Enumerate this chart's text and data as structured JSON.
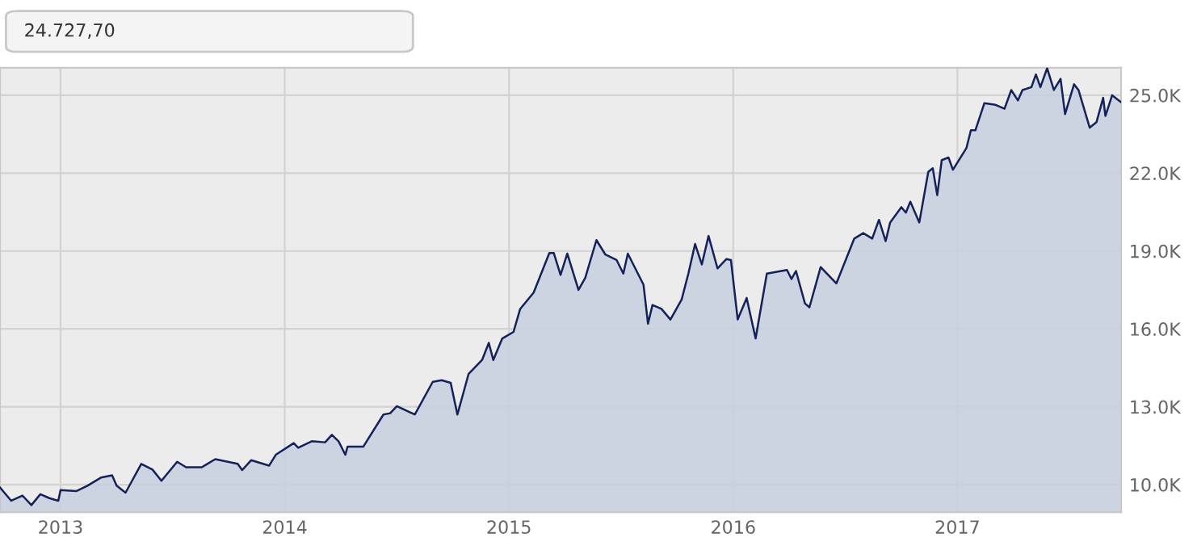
{
  "chart_data": {
    "type": "area",
    "annotations": [
      "24.727,70"
    ],
    "xlim": [
      2012.73,
      2017.73
    ],
    "xticks": [
      2013,
      2014,
      2015,
      2016,
      2017
    ],
    "ylim": [
      8940,
      26060
    ],
    "yticks": [
      {
        "value": 10000,
        "label": "10.0K"
      },
      {
        "value": 13000,
        "label": "13.0K"
      },
      {
        "value": 16000,
        "label": "16.0K"
      },
      {
        "value": 19000,
        "label": "19.0K"
      },
      {
        "value": 22000,
        "label": "22.0K"
      },
      {
        "value": 25000,
        "label": "25.0K"
      }
    ],
    "grid": true,
    "series": [
      {
        "color": "#14215a",
        "x": [
          2012.73,
          2012.78,
          2012.83,
          2012.87,
          2012.91,
          2012.95,
          2012.99,
          2013.0,
          2013.07,
          2013.12,
          2013.18,
          2013.23,
          2013.25,
          2013.29,
          2013.36,
          2013.41,
          2013.45,
          2013.52,
          2013.56,
          2013.63,
          2013.69,
          2013.79,
          2013.81,
          2013.85,
          2013.93,
          2013.96,
          2014.04,
          2014.06,
          2014.12,
          2014.18,
          2014.21,
          2014.24,
          2014.27,
          2014.28,
          2014.35,
          2014.44,
          2014.47,
          2014.5,
          2014.58,
          2014.66,
          2014.7,
          2014.74,
          2014.77,
          2014.82,
          2014.88,
          2014.91,
          2014.93,
          2014.97,
          2015.02,
          2015.05,
          2015.11,
          2015.18,
          2015.2,
          2015.23,
          2015.26,
          2015.31,
          2015.34,
          2015.39,
          2015.43,
          2015.48,
          2015.51,
          2015.53,
          2015.6,
          2015.62,
          2015.64,
          2015.68,
          2015.72,
          2015.77,
          2015.8,
          2015.83,
          2015.86,
          2015.89,
          2015.93,
          2015.97,
          2015.99,
          2016.02,
          2016.06,
          2016.1,
          2016.15,
          2016.24,
          2016.26,
          2016.28,
          2016.32,
          2016.34,
          2016.39,
          2016.46,
          2016.54,
          2016.58,
          2016.62,
          2016.65,
          2016.68,
          2016.7,
          2016.75,
          2016.77,
          2016.79,
          2016.83,
          2016.87,
          2016.89,
          2016.91,
          2016.93,
          2016.96,
          2016.98,
          2017.04,
          2017.06,
          2017.08,
          2017.12,
          2017.17,
          2017.21,
          2017.24,
          2017.27,
          2017.29,
          2017.33,
          2017.35,
          2017.37,
          2017.4,
          2017.43,
          2017.46,
          2017.48,
          2017.52,
          2017.54,
          2017.59,
          2017.62,
          2017.65,
          2017.66,
          2017.69,
          2017.73
        ],
        "values": [
          9890,
          9380,
          9580,
          9210,
          9630,
          9480,
          9380,
          9790,
          9750,
          9960,
          10270,
          10360,
          9960,
          9690,
          10800,
          10580,
          10150,
          10880,
          10670,
          10670,
          10980,
          10800,
          10560,
          10940,
          10730,
          11150,
          11600,
          11420,
          11670,
          11630,
          11920,
          11670,
          11150,
          11460,
          11460,
          12700,
          12750,
          13020,
          12700,
          13960,
          14020,
          13920,
          12700,
          14270,
          14800,
          15460,
          14800,
          15630,
          15880,
          16770,
          17400,
          18920,
          18920,
          18080,
          18900,
          17500,
          17960,
          19420,
          18860,
          18650,
          18130,
          18900,
          17700,
          16200,
          16920,
          16770,
          16360,
          17130,
          18130,
          19270,
          18480,
          19580,
          18330,
          18690,
          18650,
          16360,
          17190,
          15630,
          18130,
          18270,
          17920,
          18230,
          16980,
          16830,
          18380,
          17750,
          19480,
          19690,
          19480,
          20200,
          19380,
          20100,
          20690,
          20480,
          20900,
          20100,
          22050,
          22190,
          21150,
          22500,
          22600,
          22130,
          22960,
          23650,
          23650,
          24690,
          24630,
          24480,
          25200,
          24800,
          25200,
          25310,
          25800,
          25310,
          26040,
          25200,
          25630,
          24270,
          25420,
          25200,
          23750,
          23960,
          24900,
          24200,
          25000,
          24730
        ]
      }
    ]
  }
}
